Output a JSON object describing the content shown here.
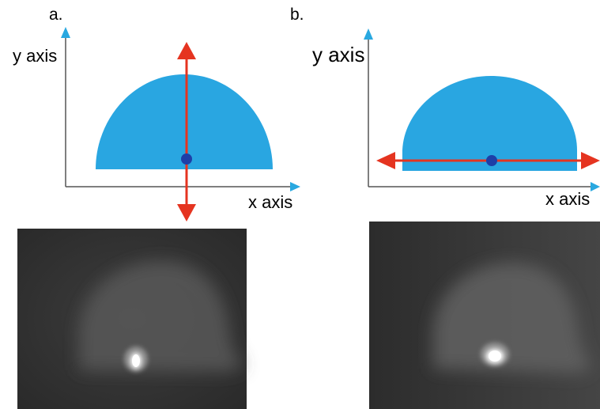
{
  "panels": [
    {
      "id": "a",
      "letter": "a.",
      "y_axis_label": "y axis",
      "x_axis_label": "x axis",
      "arrow_orientation": "vertical"
    },
    {
      "id": "b",
      "letter": "b.",
      "y_axis_label": "y axis",
      "x_axis_label": "x axis",
      "arrow_orientation": "horizontal"
    }
  ],
  "colors": {
    "axis_arrow": "#29a8e0",
    "axis_line": "#555555",
    "dome": "#29a6e1",
    "arrow": "#e53420",
    "center_dot": "#1d3fa8",
    "scan_background": "#353535",
    "scan_tissue": "#5a5a5a",
    "scan_spot": "#ffffff"
  }
}
